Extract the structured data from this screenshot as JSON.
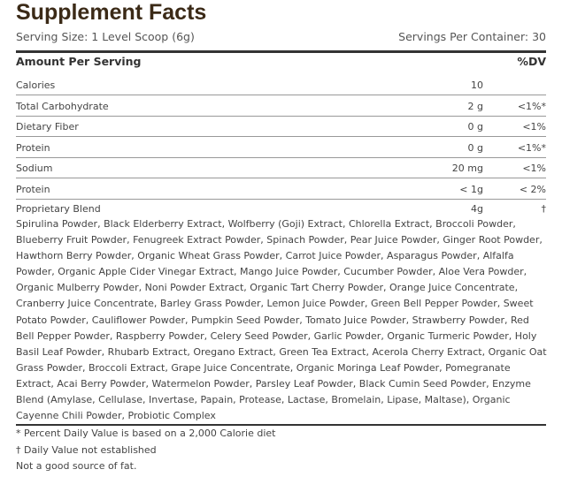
{
  "header": {
    "title": "Supplement Facts",
    "serving_size": "Serving Size: 1 Level Scoop (6g)",
    "servings_per_container": "Servings Per Container: 30"
  },
  "table": {
    "columns": [
      "Amount Per Serving",
      "%DV"
    ],
    "rows": [
      {
        "name": "Calories",
        "amount": "10"
      },
      {
        "name": "Total Carbohydrate",
        "amount": "2 g",
        "dv": "<1%*"
      },
      {
        "name": "Dietary Fiber",
        "amount": "0 g",
        "dv": "<1%"
      },
      {
        "name": "Protein",
        "amount": "0 g",
        "dv": "<1%*"
      },
      {
        "name": "Sodium",
        "amount": "20 mg",
        "dv": "<1%"
      },
      {
        "name": "Protein",
        "amount": "< 1g",
        "dv": "< 2%"
      }
    ],
    "blend": {
      "name": "Proprietary Blend",
      "amount": "4g",
      "dv": "†",
      "ingredients": "Spirulina Powder, Black Elderberry Extract, Wolfberry (Goji) Extract, Chlorella Extract, Broccoli Powder, Blueberry Fruit Powder, Fenugreek Extract Powder, Spinach Powder, Pear Juice Powder, Ginger Root Powder, Hawthorn Berry Powder, Organic Wheat Grass Powder, Carrot Juice Powder, Asparagus Powder, Alfalfa Powder, Organic Apple Cider Vinegar Extract, Mango Juice Powder, Cucumber Powder, Aloe Vera Powder, Organic Mulberry Powder, Noni Powder Extract, Organic Tart Cherry Powder, Orange Juice Concentrate, Cranberry Juice Concentrate, Barley Grass Powder, Lemon Juice Powder, Green Bell Pepper Powder, Sweet Potato Powder, Cauliflower Powder, Pumpkin Seed Powder, Tomato Juice Powder, Strawberry Powder, Red Bell Pepper Powder, Raspberry Powder, Celery Seed Powder, Garlic Powder, Organic Turmeric Powder, Holy Basil Leaf Powder, Rhubarb Extract, Oregano Extract, Green Tea Extract, Acerola Cherry Extract, Organic Oat Grass Powder, Broccoli Extract, Grape Juice Concentrate, Organic Moringa Leaf Powder, Pomegranate Extract, Acai Berry Powder, Watermelon Powder, Parsley Leaf Powder, Black Cumin Seed Powder, Enzyme Blend (Amylase, Cellulase, Invertase, Papain, Protease, Lactase, Bromelain, Lipase, Maltase), Organic Cayenne Chili Powder, Probiotic Complex"
    }
  },
  "footnotes": [
    "* Percent Daily Value is based on a 2,000 Calorie diet",
    "† Daily Value not established",
    "Not a good source of fat."
  ]
}
